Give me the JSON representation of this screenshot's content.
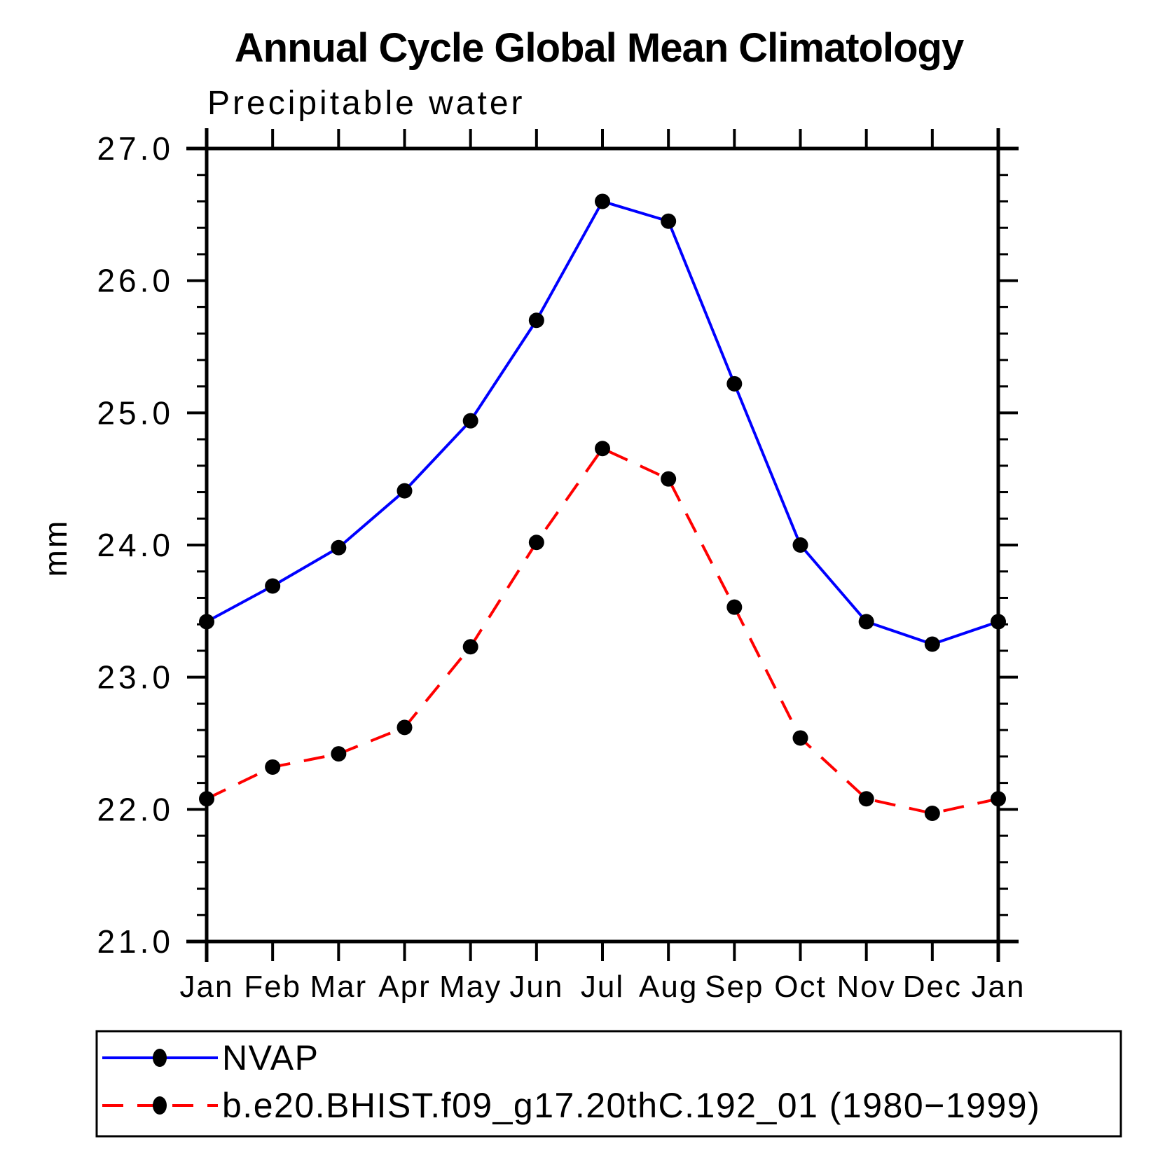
{
  "page": {
    "background": "#ffffff",
    "text_color": "#000000"
  },
  "chart_data": {
    "type": "line",
    "title": "Annual Cycle Global Mean Climatology",
    "subtitle": "Precipitable water",
    "ylabel": "mm",
    "x_categories": [
      "Jan",
      "Feb",
      "Mar",
      "Apr",
      "May",
      "Jun",
      "Jul",
      "Aug",
      "Sep",
      "Oct",
      "Nov",
      "Dec",
      "Jan"
    ],
    "ylim": [
      21.0,
      27.0
    ],
    "ytick_major": [
      21.0,
      22.0,
      23.0,
      24.0,
      25.0,
      26.0,
      27.0
    ],
    "ytick_labels": [
      "21.0",
      "22.0",
      "23.0",
      "24.0",
      "25.0",
      "26.0",
      "27.0"
    ],
    "ytick_minor_step": 0.2,
    "grid": false,
    "axis_color": "#000000",
    "marker_radius_px": 11,
    "legend_position": "bottom-left-box",
    "series": [
      {
        "name": "NVAP",
        "color": "#0000ff",
        "style": "solid",
        "marker": "filled-circle",
        "marker_color": "#000000",
        "values": [
          23.42,
          23.69,
          23.98,
          24.41,
          24.94,
          25.7,
          26.6,
          26.45,
          25.22,
          24.0,
          23.42,
          23.25,
          23.42
        ]
      },
      {
        "name": "b.e20.BHIST.f09_g17.20thC.192_01 (1980−1999)",
        "color": "#ff0000",
        "style": "dashed",
        "marker": "filled-circle",
        "marker_color": "#000000",
        "values": [
          22.08,
          22.32,
          22.42,
          22.62,
          23.23,
          24.02,
          24.73,
          24.5,
          23.53,
          22.54,
          22.08,
          21.97,
          22.08
        ]
      }
    ]
  }
}
